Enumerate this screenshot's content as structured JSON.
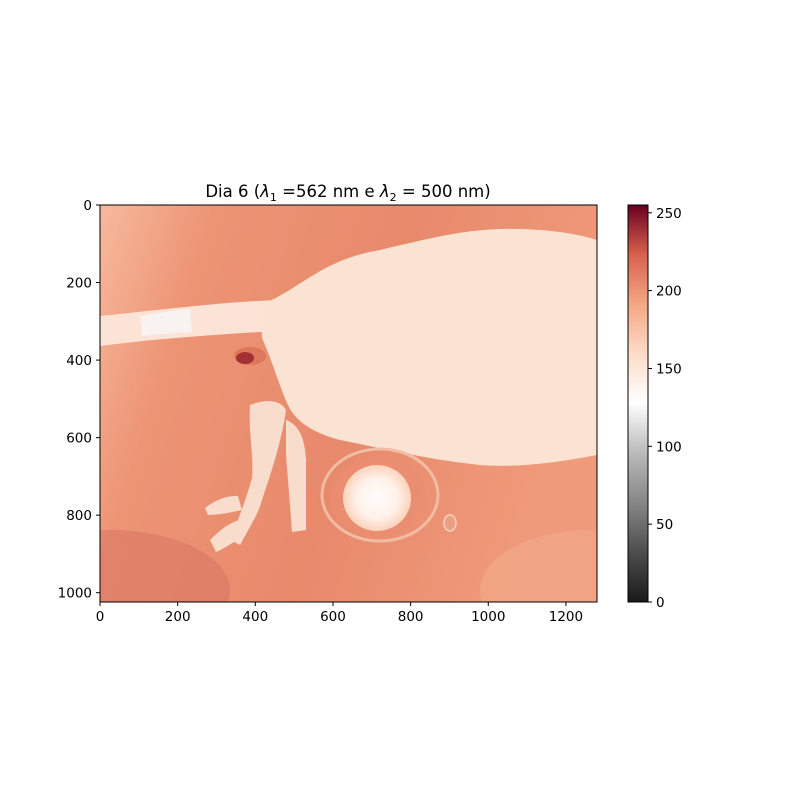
{
  "chart_data": {
    "type": "heatmap",
    "title": "Dia 6 (λ₁ =562 nm e λ₂ = 500 nm)",
    "title_parts": {
      "prefix": "Dia 6 (",
      "lambda": "λ",
      "sub1": "1",
      "mid": " =562 nm e ",
      "sub2": "2",
      "suffix": " = 500 nm)"
    },
    "xlabel": "",
    "ylabel": "",
    "image_width": 1280,
    "image_height": 1024,
    "xlim": [
      0,
      1280
    ],
    "ylim": [
      1024,
      0
    ],
    "x_ticks": [
      0,
      200,
      400,
      600,
      800,
      1000,
      1200
    ],
    "y_ticks": [
      0,
      200,
      400,
      600,
      800,
      1000
    ],
    "colorbar": {
      "colormap": "RdGy_r",
      "range": [
        0,
        255
      ],
      "ticks": [
        0,
        50,
        100,
        150,
        200,
        250
      ],
      "stops": [
        {
          "value": 0,
          "color": "#1a1a1a"
        },
        {
          "value": 32,
          "color": "#4d4d4d"
        },
        {
          "value": 64,
          "color": "#878787"
        },
        {
          "value": 96,
          "color": "#bababa"
        },
        {
          "value": 128,
          "color": "#ffffff"
        },
        {
          "value": 160,
          "color": "#fddbc7"
        },
        {
          "value": 192,
          "color": "#f4a582"
        },
        {
          "value": 224,
          "color": "#d6604d"
        },
        {
          "value": 255,
          "color": "#67001f"
        }
      ]
    },
    "regions": {
      "background_value": 205,
      "background_bright_corner_value": 180,
      "animal_body_value": 160,
      "tail_value": 150,
      "bead_center_value": 135,
      "bead_ring_value": 165,
      "dark_spot_value": 245
    }
  }
}
